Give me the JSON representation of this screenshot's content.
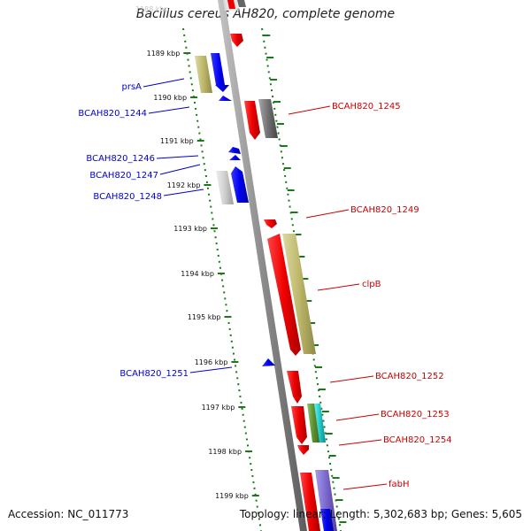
{
  "title": "Bacillus cereus AH820, complete genome",
  "footer": {
    "accession": "Accession: NC_011773",
    "summary": "Topology: linear; Length: 5,302,683 bp; Genes: 5,605"
  },
  "colors": {
    "forward_label": "#cc0000",
    "reverse_label": "#0000cc",
    "backbone": "#8c8c8c",
    "ruler": "#1a7a1a"
  },
  "ruler": {
    "faded_label": "1188 kbp",
    "ticks": [
      "1189 kbp",
      "1190 kbp",
      "1191 kbp",
      "1192 kbp",
      "1193 kbp",
      "1194 kbp",
      "1195 kbp",
      "1196 kbp",
      "1197 kbp",
      "1198 kbp",
      "1199 kbp"
    ]
  },
  "left_labels": [
    "prsA",
    "BCAH820_1244",
    "BCAH820_1246",
    "BCAH820_1247",
    "BCAH820_1248",
    "BCAH820_1251"
  ],
  "right_labels": [
    "BCAH820_1245",
    "BCAH820_1249",
    "clpB",
    "BCAH820_1252",
    "BCAH820_1253",
    "BCAH820_1254",
    "fabH"
  ]
}
